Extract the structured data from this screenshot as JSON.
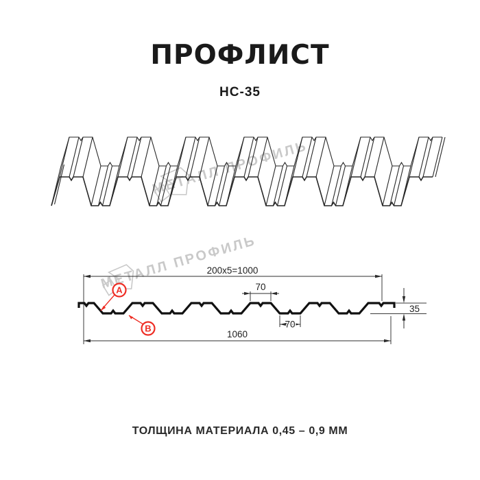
{
  "header": {
    "title": "ПРОФЛИСТ",
    "model": "НС-35"
  },
  "watermark": {
    "brand": "МЕТАЛЛ ПРОФИЛЬ"
  },
  "section": {
    "dim_width_formula": "200x5=1000",
    "dim_top_flange": "70",
    "dim_bottom_flange": "70",
    "dim_height": "35",
    "dim_total_width": "1060",
    "label_a": "А",
    "label_b": "В"
  },
  "footer": {
    "note": "ТОЛЩИНА МАТЕРИАЛА 0,45 – 0,9 ММ"
  },
  "colors": {
    "accent_red": "#ee2d24",
    "ink": "#1a1a1a",
    "watermark_gray": "#c9c9c9"
  }
}
